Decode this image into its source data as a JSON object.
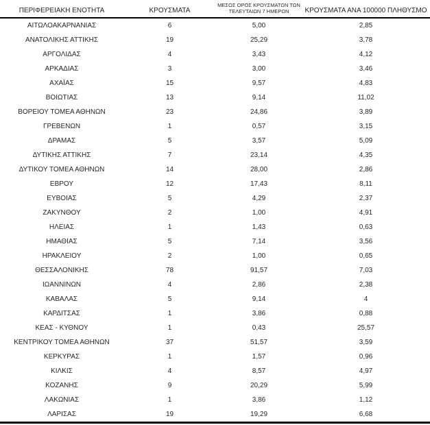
{
  "app": {
    "background_color": "#ffffff",
    "text_color": "#262626",
    "rule_color": "#000000"
  },
  "table": {
    "columns": [
      {
        "label": "ΠΕΡΙΦΕΡΕΙΑΚΗ ΕΝΟΤΗΤΑ"
      },
      {
        "label": "ΚΡΟΥΣΜΑΤΑ"
      },
      {
        "label_line1": "ΜΕΣΟΣ ΟΡΟΣ ΚΡΟΥΣΜΑΤΩΝ ΤΩΝ",
        "label_line2": "ΤΕΛΕΥΤΑΙΩΝ 7 ΗΜΕΡΩΝ"
      },
      {
        "label": "ΚΡΟΥΣΜΑΤΑ ΑΝΑ 100000 ΠΛΗΘΥΣΜΟ"
      }
    ],
    "rows": [
      {
        "region": "ΑΙΤΩΛΟΑΚΑΡΝΑΝΙΑΣ",
        "cases": "6",
        "avg_7day": "5,00",
        "per_100k": "2,85"
      },
      {
        "region": "ΑΝΑΤΟΛΙΚΗΣ ΑΤΤΙΚΗΣ",
        "cases": "19",
        "avg_7day": "25,29",
        "per_100k": "3,78"
      },
      {
        "region": "ΑΡΓΟΛΙΔΑΣ",
        "cases": "4",
        "avg_7day": "3,43",
        "per_100k": "4,12"
      },
      {
        "region": "ΑΡΚΑΔΙΑΣ",
        "cases": "3",
        "avg_7day": "3,00",
        "per_100k": "3,46"
      },
      {
        "region": "ΑΧΑΪΑΣ",
        "cases": "15",
        "avg_7day": "9,57",
        "per_100k": "4,83"
      },
      {
        "region": "ΒΟΙΩΤΙΑΣ",
        "cases": "13",
        "avg_7day": "9,14",
        "per_100k": "11,02"
      },
      {
        "region": "ΒΟΡΕΙΟΥ ΤΟΜΕΑ ΑΘΗΝΩΝ",
        "cases": "23",
        "avg_7day": "24,86",
        "per_100k": "3,89"
      },
      {
        "region": "ΓΡΕΒΕΝΩΝ",
        "cases": "1",
        "avg_7day": "0,57",
        "per_100k": "3,15"
      },
      {
        "region": "ΔΡΑΜΑΣ",
        "cases": "5",
        "avg_7day": "3,57",
        "per_100k": "5,09"
      },
      {
        "region": "ΔΥΤΙΚΗΣ ΑΤΤΙΚΗΣ",
        "cases": "7",
        "avg_7day": "23,14",
        "per_100k": "4,35"
      },
      {
        "region": "ΔΥΤΙΚΟΥ ΤΟΜΕΑ ΑΘΗΝΩΝ",
        "cases": "14",
        "avg_7day": "28,00",
        "per_100k": "2,86"
      },
      {
        "region": "ΕΒΡΟΥ",
        "cases": "12",
        "avg_7day": "17,43",
        "per_100k": "8,11"
      },
      {
        "region": "ΕΥΒΟΙΑΣ",
        "cases": "5",
        "avg_7day": "4,29",
        "per_100k": "2,37"
      },
      {
        "region": "ΖΑΚΥΝΘΟΥ",
        "cases": "2",
        "avg_7day": "1,00",
        "per_100k": "4,91"
      },
      {
        "region": "ΗΛΕΙΑΣ",
        "cases": "1",
        "avg_7day": "1,43",
        "per_100k": "0,63"
      },
      {
        "region": "ΗΜΑΘΙΑΣ",
        "cases": "5",
        "avg_7day": "7,14",
        "per_100k": "3,56"
      },
      {
        "region": "ΗΡΑΚΛΕΙΟΥ",
        "cases": "2",
        "avg_7day": "1,00",
        "per_100k": "0,65"
      },
      {
        "region": "ΘΕΣΣΑΛΟΝΙΚΗΣ",
        "cases": "78",
        "avg_7day": "91,57",
        "per_100k": "7,03"
      },
      {
        "region": "ΙΩΑΝΝΙΝΩΝ",
        "cases": "4",
        "avg_7day": "2,86",
        "per_100k": "2,38"
      },
      {
        "region": "ΚΑΒΑΛΑΣ",
        "cases": "5",
        "avg_7day": "9,14",
        "per_100k": "4"
      },
      {
        "region": "ΚΑΡΔΙΤΣΑΣ",
        "cases": "1",
        "avg_7day": "3,86",
        "per_100k": "0,88"
      },
      {
        "region": "ΚΕΑΣ - ΚΥΘΝΟΥ",
        "cases": "1",
        "avg_7day": "0,43",
        "per_100k": "25,57"
      },
      {
        "region": "ΚΕΝΤΡΙΚΟΥ ΤΟΜΕΑ ΑΘΗΝΩΝ",
        "cases": "37",
        "avg_7day": "51,57",
        "per_100k": "3,59"
      },
      {
        "region": "ΚΕΡΚΥΡΑΣ",
        "cases": "1",
        "avg_7day": "1,57",
        "per_100k": "0,96"
      },
      {
        "region": "ΚΙΛΚΙΣ",
        "cases": "4",
        "avg_7day": "8,57",
        "per_100k": "4,97"
      },
      {
        "region": "ΚΟΖΑΝΗΣ",
        "cases": "9",
        "avg_7day": "20,29",
        "per_100k": "5,99"
      },
      {
        "region": "ΛΑΚΩΝΙΑΣ",
        "cases": "1",
        "avg_7day": "3,86",
        "per_100k": "1,12"
      },
      {
        "region": "ΛΑΡΙΣΑΣ",
        "cases": "19",
        "avg_7day": "19,29",
        "per_100k": "6,68"
      }
    ]
  },
  "chart_data": {
    "type": "table",
    "title": "",
    "columns": [
      "ΠΕΡΙΦΕΡΕΙΑΚΗ ΕΝΟΤΗΤΑ",
      "ΚΡΟΥΣΜΑΤΑ",
      "ΜΕΣΟΣ ΟΡΟΣ ΚΡΟΥΣΜΑΤΩΝ ΤΩΝ ΤΕΛΕΥΤΑΙΩΝ 7 ΗΜΕΡΩΝ",
      "ΚΡΟΥΣΜΑΤΑ ΑΝΑ 100000 ΠΛΗΘΥΣΜΟ"
    ],
    "rows": [
      [
        "ΑΙΤΩΛΟΑΚΑΡΝΑΝΙΑΣ",
        6,
        5.0,
        2.85
      ],
      [
        "ΑΝΑΤΟΛΙΚΗΣ ΑΤΤΙΚΗΣ",
        19,
        25.29,
        3.78
      ],
      [
        "ΑΡΓΟΛΙΔΑΣ",
        4,
        3.43,
        4.12
      ],
      [
        "ΑΡΚΑΔΙΑΣ",
        3,
        3.0,
        3.46
      ],
      [
        "ΑΧΑΪΑΣ",
        15,
        9.57,
        4.83
      ],
      [
        "ΒΟΙΩΤΙΑΣ",
        13,
        9.14,
        11.02
      ],
      [
        "ΒΟΡΕΙΟΥ ΤΟΜΕΑ ΑΘΗΝΩΝ",
        23,
        24.86,
        3.89
      ],
      [
        "ΓΡΕΒΕΝΩΝ",
        1,
        0.57,
        3.15
      ],
      [
        "ΔΡΑΜΑΣ",
        5,
        3.57,
        5.09
      ],
      [
        "ΔΥΤΙΚΗΣ ΑΤΤΙΚΗΣ",
        7,
        23.14,
        4.35
      ],
      [
        "ΔΥΤΙΚΟΥ ΤΟΜΕΑ ΑΘΗΝΩΝ",
        14,
        28.0,
        2.86
      ],
      [
        "ΕΒΡΟΥ",
        12,
        17.43,
        8.11
      ],
      [
        "ΕΥΒΟΙΑΣ",
        5,
        4.29,
        2.37
      ],
      [
        "ΖΑΚΥΝΘΟΥ",
        2,
        1.0,
        4.91
      ],
      [
        "ΗΛΕΙΑΣ",
        1,
        1.43,
        0.63
      ],
      [
        "ΗΜΑΘΙΑΣ",
        5,
        7.14,
        3.56
      ],
      [
        "ΗΡΑΚΛΕΙΟΥ",
        2,
        1.0,
        0.65
      ],
      [
        "ΘΕΣΣΑΛΟΝΙΚΗΣ",
        78,
        91.57,
        7.03
      ],
      [
        "ΙΩΑΝΝΙΝΩΝ",
        4,
        2.86,
        2.38
      ],
      [
        "ΚΑΒΑΛΑΣ",
        5,
        9.14,
        4
      ],
      [
        "ΚΑΡΔΙΤΣΑΣ",
        1,
        3.86,
        0.88
      ],
      [
        "ΚΕΑΣ - ΚΥΘΝΟΥ",
        1,
        0.43,
        25.57
      ],
      [
        "ΚΕΝΤΡΙΚΟΥ ΤΟΜΕΑ ΑΘΗΝΩΝ",
        37,
        51.57,
        3.59
      ],
      [
        "ΚΕΡΚΥΡΑΣ",
        1,
        1.57,
        0.96
      ],
      [
        "ΚΙΛΚΙΣ",
        4,
        8.57,
        4.97
      ],
      [
        "ΚΟΖΑΝΗΣ",
        9,
        20.29,
        5.99
      ],
      [
        "ΛΑΚΩΝΙΑΣ",
        1,
        3.86,
        1.12
      ],
      [
        "ΛΑΡΙΣΑΣ",
        19,
        19.29,
        6.68
      ]
    ]
  }
}
